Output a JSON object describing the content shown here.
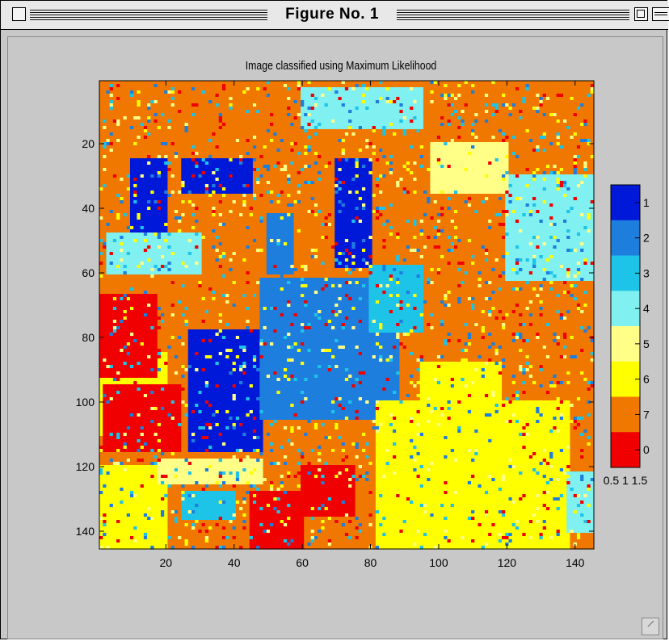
{
  "window": {
    "title": "Figure No. 1"
  },
  "chart_data": {
    "type": "heatmap",
    "title": "Image classified using Maximum Likelihood",
    "xlabel": "",
    "ylabel": "",
    "x_ticks": [
      20,
      40,
      60,
      80,
      100,
      120,
      140
    ],
    "y_ticks": [
      20,
      40,
      60,
      80,
      100,
      120,
      140
    ],
    "xlim": [
      0.5,
      145.5
    ],
    "ylim": [
      0.5,
      145.5
    ],
    "y_reversed": true,
    "grid": false,
    "colorbar": {
      "labels": [
        "1",
        "2",
        "3",
        "4",
        "5",
        "6",
        "7",
        "0"
      ],
      "colors": [
        "#0019d8",
        "#1e7ede",
        "#1ec3e8",
        "#80f0f0",
        "#ffff88",
        "#ffff00",
        "#f07800",
        "#f00000"
      ],
      "x_tick_labels": "0.5 1 1.5"
    },
    "classes_legend_note": "",
    "regions": [
      {
        "class": 7,
        "x": [
          0.5,
          145.5
        ],
        "y": [
          0.5,
          145.5
        ]
      },
      {
        "class": 6,
        "x": [
          0.5,
          20
        ],
        "y": [
          85,
          110
        ]
      },
      {
        "class": 0,
        "x": [
          0.5,
          17
        ],
        "y": [
          67,
          92
        ]
      },
      {
        "class": 0,
        "x": [
          2,
          24
        ],
        "y": [
          95,
          115
        ]
      },
      {
        "class": 6,
        "x": [
          0.5,
          20
        ],
        "y": [
          120,
          145
        ]
      },
      {
        "class": 1,
        "x": [
          27,
          48
        ],
        "y": [
          78,
          115
        ]
      },
      {
        "class": 1,
        "x": [
          25,
          45
        ],
        "y": [
          25,
          35
        ]
      },
      {
        "class": 2,
        "x": [
          48,
          88
        ],
        "y": [
          62,
          105
        ]
      },
      {
        "class": 2,
        "x": [
          50,
          57
        ],
        "y": [
          42,
          60
        ]
      },
      {
        "class": 3,
        "x": [
          80,
          95
        ],
        "y": [
          58,
          78
        ]
      },
      {
        "class": 4,
        "x": [
          120,
          145
        ],
        "y": [
          30,
          62
        ]
      },
      {
        "class": 4,
        "x": [
          60,
          95
        ],
        "y": [
          3,
          15
        ]
      },
      {
        "class": 5,
        "x": [
          98,
          120
        ],
        "y": [
          20,
          35
        ]
      },
      {
        "class": 6,
        "x": [
          82,
          138
        ],
        "y": [
          100,
          145
        ]
      },
      {
        "class": 6,
        "x": [
          95,
          118
        ],
        "y": [
          88,
          100
        ]
      },
      {
        "class": 5,
        "x": [
          18,
          48
        ],
        "y": [
          118,
          125
        ]
      },
      {
        "class": 0,
        "x": [
          45,
          60
        ],
        "y": [
          128,
          145
        ]
      },
      {
        "class": 1,
        "x": [
          10,
          20
        ],
        "y": [
          25,
          60
        ]
      },
      {
        "class": 4,
        "x": [
          3,
          30
        ],
        "y": [
          48,
          60
        ]
      },
      {
        "class": 1,
        "x": [
          70,
          80
        ],
        "y": [
          25,
          58
        ]
      },
      {
        "class": 0,
        "x": [
          60,
          75
        ],
        "y": [
          120,
          135
        ]
      },
      {
        "class": 3,
        "x": [
          25,
          40
        ],
        "y": [
          128,
          136
        ]
      },
      {
        "class": 4,
        "x": [
          138,
          145
        ],
        "y": [
          122,
          140
        ]
      }
    ]
  }
}
